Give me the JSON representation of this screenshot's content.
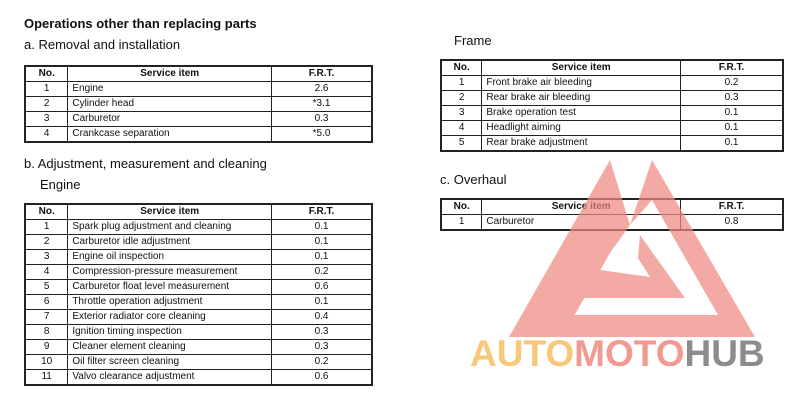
{
  "title": "Operations other than replacing parts",
  "section_a": {
    "heading": "a. Removal and installation",
    "columns": [
      "No.",
      "Service item",
      "F.R.T."
    ],
    "rows": [
      [
        "1",
        "Engine",
        "2.6"
      ],
      [
        "2",
        "Cylinder head",
        "*3.1"
      ],
      [
        "3",
        "Carburetor",
        "0.3"
      ],
      [
        "4",
        "Crankcase separation",
        "*5.0"
      ]
    ]
  },
  "section_b": {
    "heading": "b. Adjustment, measurement and cleaning",
    "engine": {
      "subheading": "Engine",
      "columns": [
        "No.",
        "Service item",
        "F.R.T."
      ],
      "rows": [
        [
          "1",
          "Spark plug adjustment and cleaning",
          "0.1"
        ],
        [
          "2",
          "Carburetor idle adjustment",
          "0.1"
        ],
        [
          "3",
          "Engine oil inspection",
          "0.1"
        ],
        [
          "4",
          "Compression-pressure measurement",
          "0.2"
        ],
        [
          "5",
          "Carburetor float level measurement",
          "0.6"
        ],
        [
          "6",
          "Throttle operation adjustment",
          "0.1"
        ],
        [
          "7",
          "Exterior radiator core cleaning",
          "0.4"
        ],
        [
          "8",
          "Ignition timing inspection",
          "0.3"
        ],
        [
          "9",
          "Cleaner element cleaning",
          "0.3"
        ],
        [
          "10",
          "Oil filter screen cleaning",
          "0.2"
        ],
        [
          "11",
          "Valvo clearance adjustment",
          "0.6"
        ]
      ]
    },
    "frame": {
      "subheading": "Frame",
      "columns": [
        "No.",
        "Service item",
        "F.R.T."
      ],
      "rows": [
        [
          "1",
          "Front brake air bleeding",
          "0.2"
        ],
        [
          "2",
          "Rear brake air bleeding",
          "0.3"
        ],
        [
          "3",
          "Brake operation test",
          "0.1"
        ],
        [
          "4",
          "Headlight aiming",
          "0.1"
        ],
        [
          "5",
          "Rear brake adjustment",
          "0.1"
        ]
      ]
    }
  },
  "section_c": {
    "heading": "c. Overhaul",
    "columns": [
      "No.",
      "Service item",
      "F.R.T."
    ],
    "rows": [
      [
        "1",
        "Carburetor",
        "0.8"
      ]
    ]
  },
  "watermark": {
    "text_parts": [
      "AUTO",
      "MOTO",
      "HUB"
    ],
    "colors": [
      "#f8c77a",
      "#f29a92",
      "#8c8c8c"
    ],
    "triangle_color": "#f08a82"
  }
}
